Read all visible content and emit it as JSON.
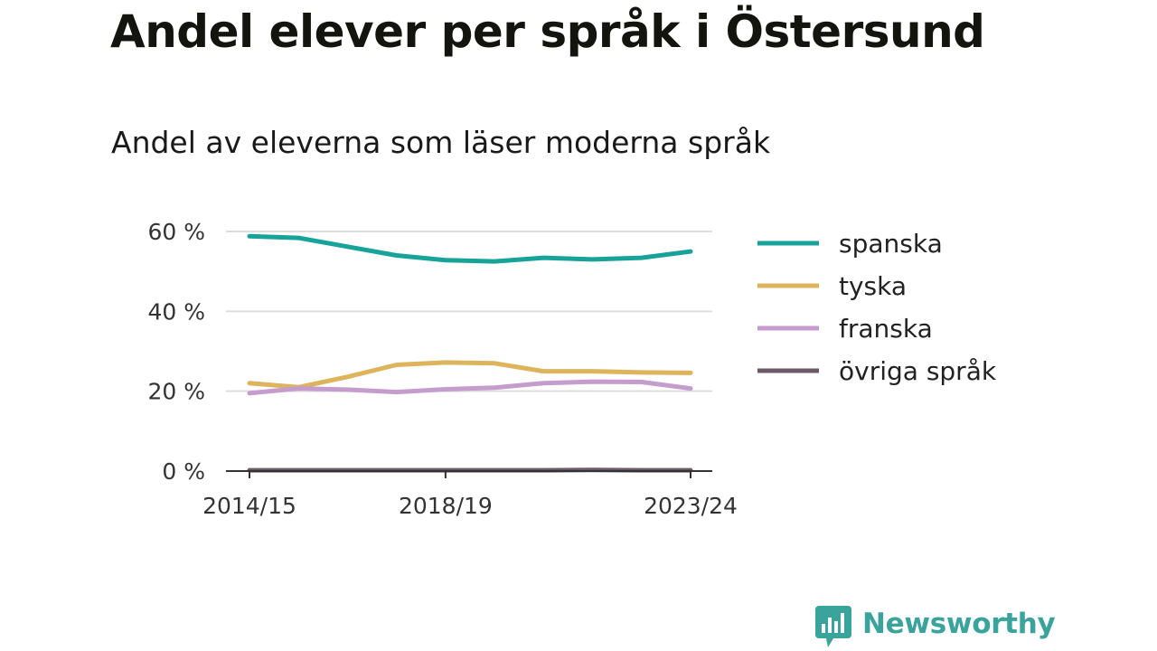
{
  "title": "Andel elever per språk i Östersund",
  "subtitle": "Andel av eleverna som läser moderna språk",
  "brand": {
    "name": "Newsworthy",
    "color": "#3aa39b"
  },
  "chart_data": {
    "type": "line",
    "x": [
      "2014/15",
      "2015/16",
      "2016/17",
      "2017/18",
      "2018/19",
      "2019/20",
      "2020/21",
      "2021/22",
      "2022/23",
      "2023/24"
    ],
    "x_tick_labels": [
      "2014/15",
      "2018/19",
      "2023/24"
    ],
    "y_ticks": [
      0,
      20,
      40,
      60
    ],
    "y_tick_labels": [
      "0 %",
      "20 %",
      "40 %",
      "60 %"
    ],
    "ylim": [
      0,
      60
    ],
    "grid": true,
    "legend_position": "right",
    "series": [
      {
        "name": "spanska",
        "color": "#17a39a",
        "values": [
          58.8,
          58.4,
          56.2,
          54.0,
          52.8,
          52.5,
          53.4,
          53.0,
          53.4,
          55.0
        ]
      },
      {
        "name": "tyska",
        "color": "#ddb45c",
        "values": [
          22.0,
          21.0,
          23.6,
          26.6,
          27.2,
          27.0,
          25.0,
          25.0,
          24.7,
          24.6
        ]
      },
      {
        "name": "franska",
        "color": "#c49ccd",
        "values": [
          19.5,
          20.7,
          20.4,
          19.8,
          20.5,
          20.9,
          22.0,
          22.4,
          22.3,
          20.7
        ]
      },
      {
        "name": "övriga språk",
        "color": "#6c5968",
        "values": [
          0.2,
          0.2,
          0.2,
          0.2,
          0.2,
          0.2,
          0.2,
          0.3,
          0.2,
          0.2
        ]
      }
    ]
  }
}
